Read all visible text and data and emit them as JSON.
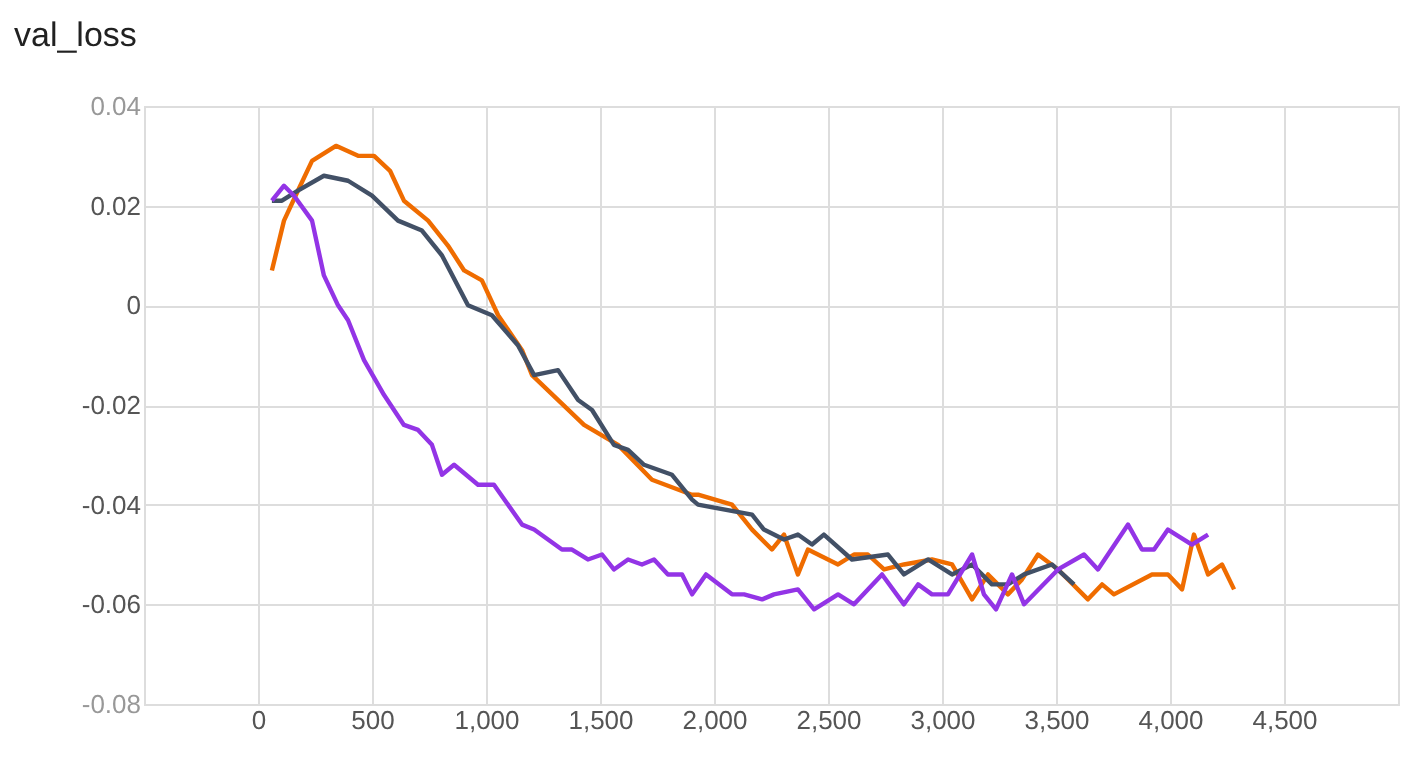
{
  "chart_data": {
    "type": "line",
    "title": "val_loss",
    "xlim": [
      -500,
      5000
    ],
    "ylim": [
      -0.08,
      0.04
    ],
    "xticks": [
      {
        "value": -500,
        "label": null
      },
      0,
      500,
      {
        "value": 1000,
        "label": "1,000"
      },
      {
        "value": 1500,
        "label": "1,500"
      },
      {
        "value": 2000,
        "label": "2,000"
      },
      {
        "value": 2500,
        "label": "2,500"
      },
      {
        "value": 3000,
        "label": "3,000"
      },
      {
        "value": 3500,
        "label": "3,500"
      },
      {
        "value": 4000,
        "label": "4,000"
      },
      {
        "value": 4500,
        "label": "4,500"
      },
      {
        "value": 5000,
        "label": null
      }
    ],
    "yticks": [
      -0.08,
      -0.06,
      -0.04,
      -0.02,
      0,
      0.02,
      0.04
    ],
    "grid": true,
    "line_style": "solid",
    "marker": "none",
    "series": [
      {
        "color": "#ef6c00",
        "x": [
          61,
          114,
          175,
          237,
          342,
          439,
          509,
          579,
          640,
          746,
          833,
          904,
          982,
          1053,
          1158,
          1202,
          1430,
          1579,
          1728,
          1903,
          1930,
          2079,
          2167,
          2254,
          2307,
          2368,
          2412,
          2544,
          2614,
          2675,
          2746,
          2833,
          2956,
          3044,
          3132,
          3202,
          3289,
          3351,
          3421,
          3509,
          3640,
          3702,
          3754,
          3921,
          3991,
          4053,
          4105,
          4167,
          4228,
          4281
        ],
        "values": [
          0.007,
          0.017,
          0.023,
          0.029,
          0.032,
          0.03,
          0.03,
          0.027,
          0.021,
          0.017,
          0.012,
          0.007,
          0.005,
          -0.002,
          -0.009,
          -0.014,
          -0.024,
          -0.028,
          -0.035,
          -0.038,
          -0.038,
          -0.04,
          -0.045,
          -0.049,
          -0.046,
          -0.054,
          -0.049,
          -0.052,
          -0.05,
          -0.05,
          -0.053,
          -0.052,
          -0.051,
          -0.052,
          -0.059,
          -0.054,
          -0.058,
          -0.055,
          -0.05,
          -0.053,
          -0.059,
          -0.056,
          -0.058,
          -0.054,
          -0.054,
          -0.057,
          -0.046,
          -0.054,
          -0.052,
          -0.057
        ]
      },
      {
        "color": "#425066",
        "x": [
          61,
          105,
          175,
          289,
          395,
          500,
          614,
          719,
          807,
          921,
          1026,
          1140,
          1211,
          1316,
          1404,
          1465,
          1561,
          1623,
          1693,
          1816,
          1904,
          1930,
          2167,
          2219,
          2307,
          2368,
          2430,
          2482,
          2605,
          2763,
          2833,
          2939,
          3044,
          3132,
          3219,
          3289,
          3360,
          3482,
          3579
        ],
        "values": [
          0.021,
          0.021,
          0.023,
          0.026,
          0.025,
          0.022,
          0.017,
          0.015,
          0.01,
          0.0,
          -0.002,
          -0.008,
          -0.014,
          -0.013,
          -0.019,
          -0.021,
          -0.028,
          -0.029,
          -0.032,
          -0.034,
          -0.039,
          -0.04,
          -0.042,
          -0.045,
          -0.047,
          -0.046,
          -0.048,
          -0.046,
          -0.051,
          -0.05,
          -0.054,
          -0.051,
          -0.054,
          -0.052,
          -0.056,
          -0.056,
          -0.054,
          -0.052,
          -0.056
        ]
      },
      {
        "color": "#9334e6",
        "x": [
          61,
          114,
          158,
          237,
          289,
          351,
          395,
          465,
          553,
          640,
          702,
          763,
          807,
          860,
          965,
          1035,
          1158,
          1211,
          1333,
          1377,
          1447,
          1509,
          1561,
          1623,
          1684,
          1737,
          1798,
          1860,
          1904,
          1965,
          2079,
          2132,
          2211,
          2263,
          2368,
          2439,
          2544,
          2614,
          2737,
          2833,
          2895,
          2956,
          3026,
          3132,
          3184,
          3237,
          3307,
          3360,
          3509,
          3623,
          3684,
          3772,
          3816,
          3877,
          3930,
          3991,
          4096,
          4167
        ],
        "values": [
          0.021,
          0.024,
          0.022,
          0.017,
          0.006,
          0.0,
          -0.003,
          -0.011,
          -0.018,
          -0.024,
          -0.025,
          -0.028,
          -0.034,
          -0.032,
          -0.036,
          -0.036,
          -0.044,
          -0.045,
          -0.049,
          -0.049,
          -0.051,
          -0.05,
          -0.053,
          -0.051,
          -0.052,
          -0.051,
          -0.054,
          -0.054,
          -0.058,
          -0.054,
          -0.058,
          -0.058,
          -0.059,
          -0.058,
          -0.057,
          -0.061,
          -0.058,
          -0.06,
          -0.054,
          -0.06,
          -0.056,
          -0.058,
          -0.058,
          -0.05,
          -0.058,
          -0.061,
          -0.054,
          -0.06,
          -0.053,
          -0.05,
          -0.053,
          -0.047,
          -0.044,
          -0.049,
          -0.049,
          -0.045,
          -0.048,
          -0.046
        ]
      }
    ]
  }
}
